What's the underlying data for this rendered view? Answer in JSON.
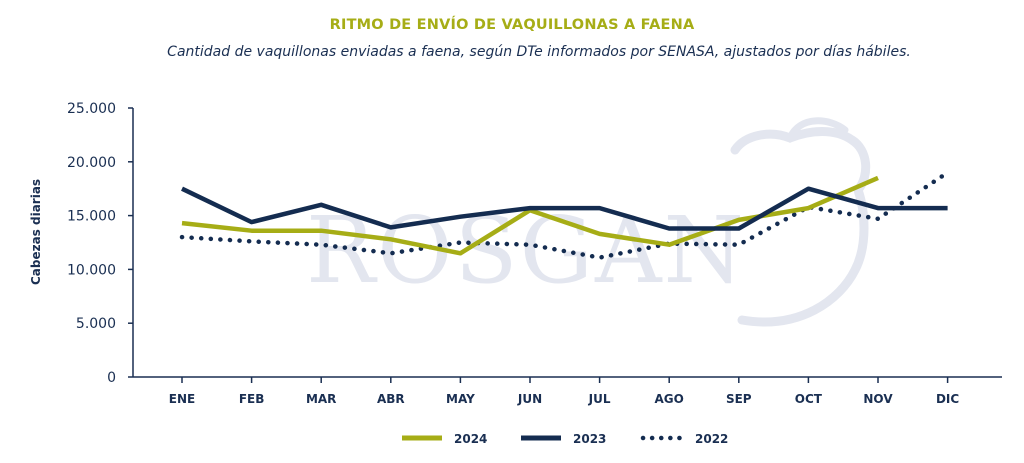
{
  "chart_data": {
    "type": "line",
    "title": "RITMO DE ENVÍO DE VAQUILLONAS A FAENA",
    "subtitle": "Cantidad de vaquillonas enviadas a faena, según DTe informados por SENASA, ajustados por días hábiles.",
    "ylabel": "Cabezas diarias",
    "xlabel": "",
    "ylim": [
      0,
      25000
    ],
    "y_ticks": [
      {
        "value": 0,
        "label": "0"
      },
      {
        "value": 5000,
        "label": "5.000"
      },
      {
        "value": 10000,
        "label": "10.000"
      },
      {
        "value": 15000,
        "label": "15.000"
      },
      {
        "value": 20000,
        "label": "20.000"
      },
      {
        "value": 25000,
        "label": "25.000"
      }
    ],
    "categories": [
      "ENE",
      "FEB",
      "MAR",
      "ABR",
      "MAY",
      "JUN",
      "JUL",
      "AGO",
      "SEP",
      "OCT",
      "NOV",
      "DIC"
    ],
    "series": [
      {
        "name": "2024",
        "color": "#a6ad16",
        "style": "solid",
        "values": [
          14300,
          13600,
          13600,
          12800,
          11500,
          15500,
          13300,
          12300,
          14600,
          15700,
          18500,
          null
        ]
      },
      {
        "name": "2023",
        "color": "#142c50",
        "style": "solid",
        "values": [
          17500,
          14400,
          16000,
          13900,
          14900,
          15700,
          15700,
          13800,
          13800,
          17500,
          15700,
          15700
        ]
      },
      {
        "name": "2022",
        "color": "#142c50",
        "style": "dotted",
        "values": [
          13000,
          12600,
          12300,
          11500,
          12500,
          12300,
          11100,
          12400,
          12300,
          15800,
          14700,
          19000
        ]
      }
    ],
    "grid": false,
    "legend_position": "bottom-center"
  },
  "watermark": {
    "text": "ROSGAN"
  }
}
